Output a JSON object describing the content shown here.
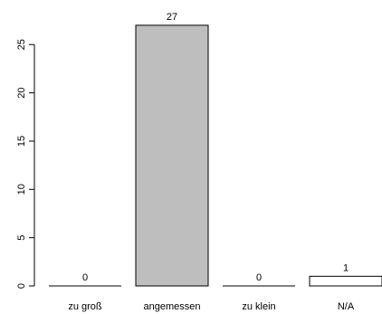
{
  "chart_data": {
    "type": "bar",
    "categories": [
      "zu groß",
      "angemessen",
      "zu klein",
      "N/A"
    ],
    "values": [
      0,
      27,
      0,
      1
    ],
    "value_labels": [
      "0",
      "27",
      "0",
      "1"
    ],
    "y_ticks": [
      0,
      5,
      10,
      15,
      20,
      25
    ],
    "ylim": [
      0,
      27
    ],
    "title": "",
    "xlabel": "",
    "ylabel": "",
    "grid": false,
    "colors": {
      "highlight_fill": "#bebebe",
      "default_fill": "#ffffff",
      "stroke": "#000000"
    },
    "highlight_index": 1
  }
}
